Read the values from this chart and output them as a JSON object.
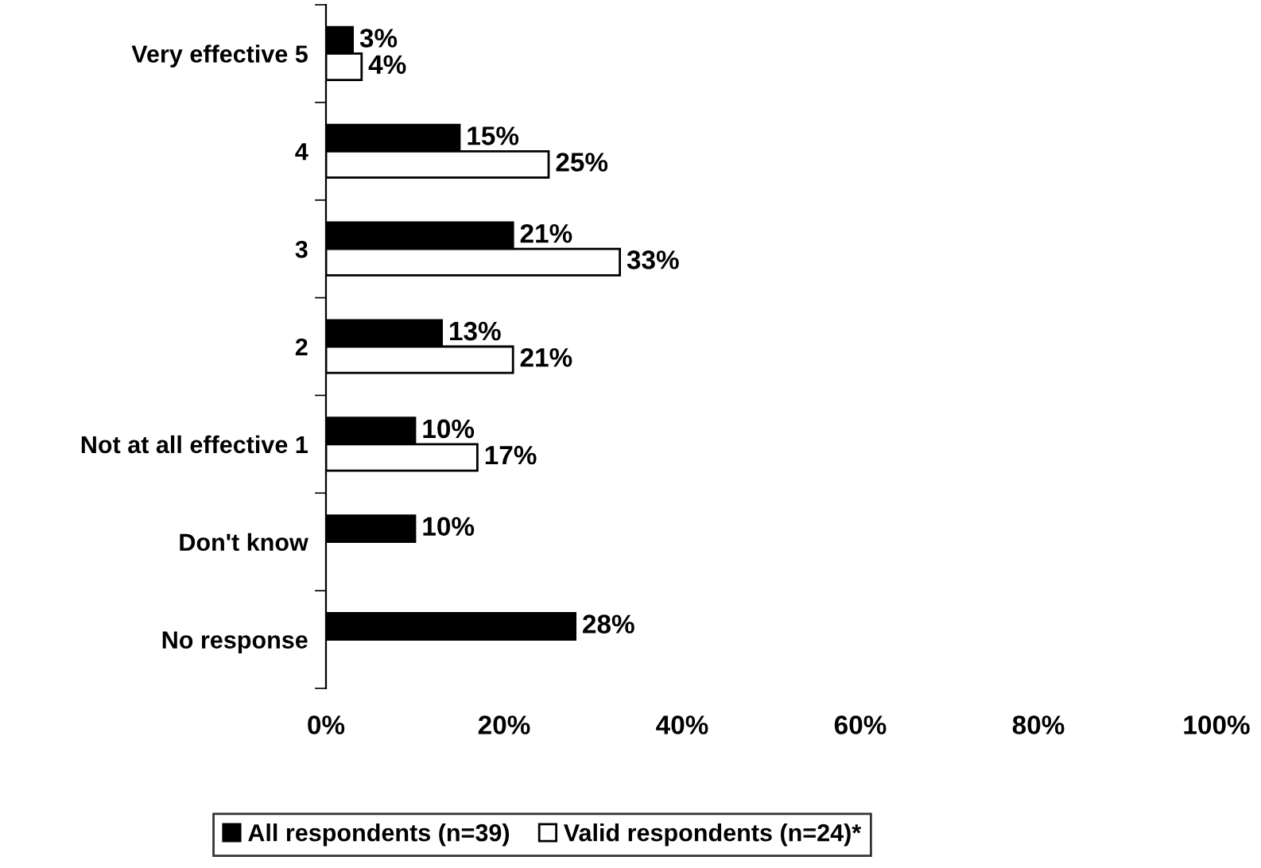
{
  "chart_data": {
    "type": "bar",
    "orientation": "horizontal",
    "categories": [
      "Very effective 5",
      "4",
      "3",
      "2",
      "Not at all effective 1",
      "Don't know",
      "No response"
    ],
    "series": [
      {
        "name": "All respondents (n=39)",
        "color": "#000000",
        "values": [
          3,
          15,
          21,
          13,
          10,
          10,
          28
        ],
        "value_labels": [
          "3%",
          "15%",
          "21%",
          "13%",
          "10%",
          "10%",
          "28%"
        ]
      },
      {
        "name": "Valid respondents (n=24)*",
        "color": "#ffffff",
        "values": [
          4,
          25,
          33,
          21,
          17,
          null,
          null
        ],
        "value_labels": [
          "4%",
          "25%",
          "33%",
          "21%",
          "17%",
          null,
          null
        ]
      }
    ],
    "xlim": [
      0,
      100
    ],
    "xticks": [
      {
        "value": 0,
        "label": "0%"
      },
      {
        "value": 20,
        "label": "20%"
      },
      {
        "value": 40,
        "label": "40%"
      },
      {
        "value": 60,
        "label": "60%"
      },
      {
        "value": 80,
        "label": "80%"
      },
      {
        "value": 100,
        "label": "100%"
      }
    ],
    "grid": false,
    "legend": "bottom"
  }
}
